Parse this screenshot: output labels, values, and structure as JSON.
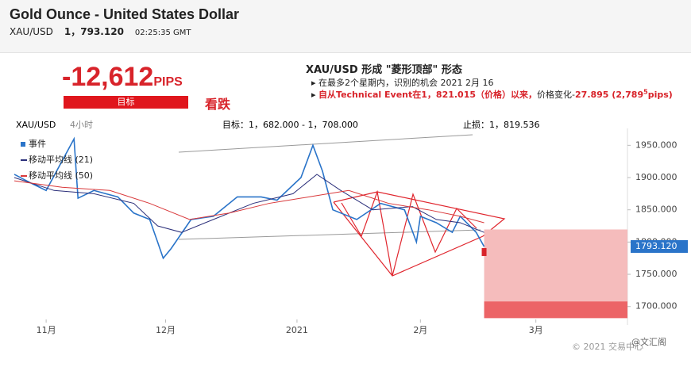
{
  "header": {
    "title": "Gold Ounce - United States Dollar",
    "symbol": "XAU/USD",
    "price": "1，793.120",
    "time": "02:25:35 GMT"
  },
  "signal": {
    "pips": "-12,612",
    "pips_unit": "PIPS",
    "target_label": "目标",
    "direction": "看跌"
  },
  "pattern": {
    "title": "XAU/USD 形成 \"菱形顶部\" 形态",
    "line1": "在最多2个星期内，识别的机会 2021 2月 16",
    "line2_red": "自从Technical Event在1，821.015（价格）以来，",
    "line2_black": "价格变化-",
    "line2_change": "27.895 (2,789",
    "line2_sup": "5",
    "line2_end": "pips)"
  },
  "chart_header": {
    "symbol": "XAU/USD",
    "interval": "4小时",
    "target": "目标：1，682.000 - 1，708.000",
    "stop": "止损：1，819.536"
  },
  "chart_data": {
    "type": "line",
    "xlim": [
      0,
      154
    ],
    "ylim": [
      1680,
      1975
    ],
    "yticks": [
      {
        "value": 1700,
        "label": "1700.000"
      },
      {
        "value": 1750,
        "label": "1750.000"
      },
      {
        "value": 1800,
        "label": "1800.000"
      },
      {
        "value": 1850,
        "label": "1850.000"
      },
      {
        "value": 1900,
        "label": "1900.000"
      },
      {
        "value": 1950,
        "label": "1950.000"
      }
    ],
    "xticks": [
      {
        "value": 8,
        "label": "11月"
      },
      {
        "value": 38,
        "label": "12月"
      },
      {
        "value": 71,
        "label": "2021"
      },
      {
        "value": 102,
        "label": "2月"
      },
      {
        "value": 131,
        "label": "3月"
      }
    ],
    "series": [
      {
        "name": "事件",
        "color": "#2a74c9",
        "x": [
          0,
          4,
          8,
          15,
          16,
          20,
          26,
          30,
          34,
          36,
          37.4,
          39.4,
          44.4,
          50,
          56,
          62,
          66,
          72,
          75,
          77.4,
          80,
          86,
          92,
          98,
          101,
          102,
          106,
          110,
          112,
          116,
          118
        ],
        "values": [
          1905,
          1892,
          1880,
          1960,
          1868,
          1880,
          1870,
          1845,
          1835,
          1800,
          1775,
          1790,
          1835,
          1840,
          1870,
          1870,
          1865,
          1900,
          1950,
          1910,
          1850,
          1835,
          1860,
          1850,
          1800,
          1840,
          1830,
          1815,
          1840,
          1815,
          1793
        ]
      },
      {
        "name": "移动平均线 (21)",
        "color": "#2b2f7a",
        "x": [
          0,
          10,
          20,
          30,
          36,
          42,
          50,
          60,
          70,
          76,
          82,
          90,
          100,
          106,
          112,
          118
        ],
        "values": [
          1900,
          1880,
          1875,
          1860,
          1825,
          1815,
          1835,
          1860,
          1875,
          1905,
          1880,
          1850,
          1855,
          1835,
          1830,
          1815
        ]
      },
      {
        "name": "移动平均线 (50)",
        "color": "#d9393b",
        "x": [
          0,
          12,
          24,
          34,
          44,
          54,
          64,
          74,
          84,
          94,
          104,
          112,
          118
        ],
        "values": [
          1895,
          1885,
          1880,
          1860,
          1835,
          1845,
          1860,
          1870,
          1880,
          1860,
          1850,
          1840,
          1830
        ]
      }
    ],
    "stop_level": 1819.536,
    "target_zone": [
      1682,
      1708
    ],
    "last_price": {
      "value": 1793.12,
      "label": "1793.120"
    }
  },
  "footer": {
    "copyright": "© 2021 交易中心",
    "watermark": "@文汇阁"
  }
}
